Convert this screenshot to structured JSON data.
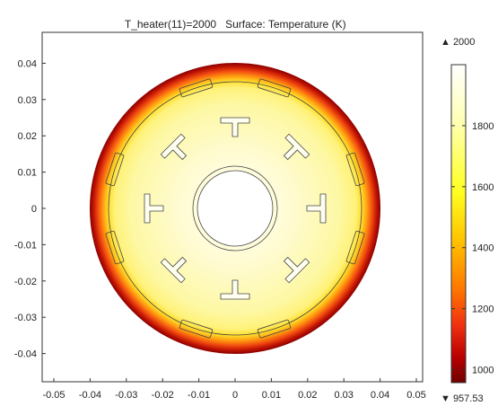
{
  "title_parts": [
    "T_heater(11)=2000",
    "Surface: Temperature (K)"
  ],
  "chart_data": {
    "type": "heatmap",
    "title": "T_heater(11)=2000   Surface: Temperature (K)",
    "parameter": "T_heater(11)=2000",
    "quantity": "Surface: Temperature (K)",
    "xlim": [
      -0.055,
      0.055
    ],
    "ylim": [
      -0.047,
      0.047
    ],
    "x_ticks": [
      -0.05,
      -0.04,
      -0.03,
      -0.02,
      -0.01,
      0,
      0.01,
      0.02,
      0.03,
      0.04,
      0.05
    ],
    "x_tick_labels": [
      "-0.05",
      "-0.04",
      "-0.03",
      "-0.02",
      "-0.01",
      "0",
      "0.01",
      "0.02",
      "0.03",
      "0.04",
      "0.05"
    ],
    "y_ticks": [
      0.04,
      0.03,
      0.02,
      0.01,
      0,
      -0.01,
      -0.02,
      -0.03,
      -0.04
    ],
    "y_tick_labels": [
      "0.04",
      "0.03",
      "0.02",
      "0.01",
      "0",
      "-0.01",
      "-0.02",
      "-0.03",
      "-0.04"
    ],
    "colorbar": {
      "max_label": "▲ 2000",
      "min_label": "▼ 957.53",
      "max": 2000,
      "min": 957.53,
      "ticks": [
        1800,
        1600,
        1400,
        1200,
        1000
      ],
      "tick_labels": [
        "1800",
        "1600",
        "1400",
        "1200",
        "1000"
      ],
      "colormap": [
        "#ffffff",
        "#ffff8a",
        "#ffe600",
        "#ff8c00",
        "#e83010",
        "#b00000",
        "#7a0000"
      ]
    },
    "geometry": {
      "outer_radius": 0.04,
      "inner_boundary_radius": 0.035,
      "hole_radius": 0.0105,
      "hole_ring_radius": 0.0117,
      "tee_positions_radius": 0.023
    },
    "field_colors": {
      "center": "#fffff2",
      "mid": "#fdfaa6",
      "outer": "#fff06a"
    }
  }
}
